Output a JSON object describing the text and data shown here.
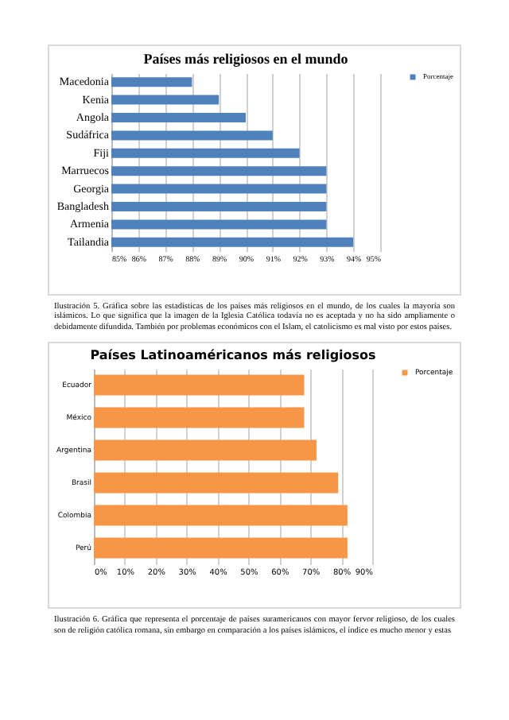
{
  "chart_data": [
    {
      "type": "bar",
      "orientation": "horizontal",
      "title": "Países más religiosos en el mundo",
      "categories": [
        "Macedonia",
        "Kenia",
        "Angola",
        "Sudáfrica",
        "Fiji",
        "Marruecos",
        "Georgia",
        "Bangladesh",
        "Armenia",
        "Tailandia"
      ],
      "series": [
        {
          "name": "Porcentaje",
          "color": "#4f81bd",
          "values": [
            88,
            89,
            90,
            91,
            92,
            93,
            93,
            93,
            93,
            94
          ]
        }
      ],
      "xlim": [
        85,
        95
      ],
      "xticks": [
        {
          "value": 85,
          "label": "85%"
        },
        {
          "value": 86,
          "label": "86%"
        },
        {
          "value": 87,
          "label": "87%"
        },
        {
          "value": 88,
          "label": "88%"
        },
        {
          "value": 89,
          "label": "89%"
        },
        {
          "value": 90,
          "label": "90%"
        },
        {
          "value": 91,
          "label": "91%"
        },
        {
          "value": 92,
          "label": "92%"
        },
        {
          "value": 93,
          "label": "93%"
        },
        {
          "value": 94,
          "label": "94%"
        },
        {
          "value": 95,
          "label": "95%"
        }
      ],
      "grid": "x",
      "legend": "right",
      "annotations": [
        "Ilustración 5. Gráfica sobre las estadísticas de los países más religiosos en el mundo, de los cuales la mayoría son islámicos. Lo que significa que la imagen de la Iglesia Católica todavía no es aceptada y no ha sido ampliamente o debidamente difundida. También por problemas económicos con el Islam, el catolicismo es mal visto por estos países."
      ]
    },
    {
      "type": "bar",
      "orientation": "horizontal",
      "title": "Países Latinoaméricanos más religiosos",
      "categories": [
        "Ecuador",
        "México",
        "Argentina",
        "Brasil",
        "Colombia",
        "Perú"
      ],
      "series": [
        {
          "name": "Porcentaje",
          "color": "#f79646",
          "values": [
            68,
            68,
            72,
            79,
            82,
            82
          ]
        }
      ],
      "xlim": [
        0,
        90
      ],
      "xticks": [
        {
          "value": 0,
          "label": "0%"
        },
        {
          "value": 10,
          "label": "10%"
        },
        {
          "value": 20,
          "label": "20%"
        },
        {
          "value": 30,
          "label": "30%"
        },
        {
          "value": 40,
          "label": "40%"
        },
        {
          "value": 50,
          "label": "50%"
        },
        {
          "value": 60,
          "label": "60%"
        },
        {
          "value": 70,
          "label": "70%"
        },
        {
          "value": 80,
          "label": "80%"
        },
        {
          "value": 90,
          "label": "90%"
        }
      ],
      "grid": "x",
      "legend": "right",
      "annotations": [
        "Ilustración 6. Gráfica que representa el porcentaje de países suramericanos con mayor fervor religioso, de los cuales son de religión católica romana, sin embargo en comparación a los países islámicos, el índice es mucho menor y estas"
      ]
    }
  ]
}
